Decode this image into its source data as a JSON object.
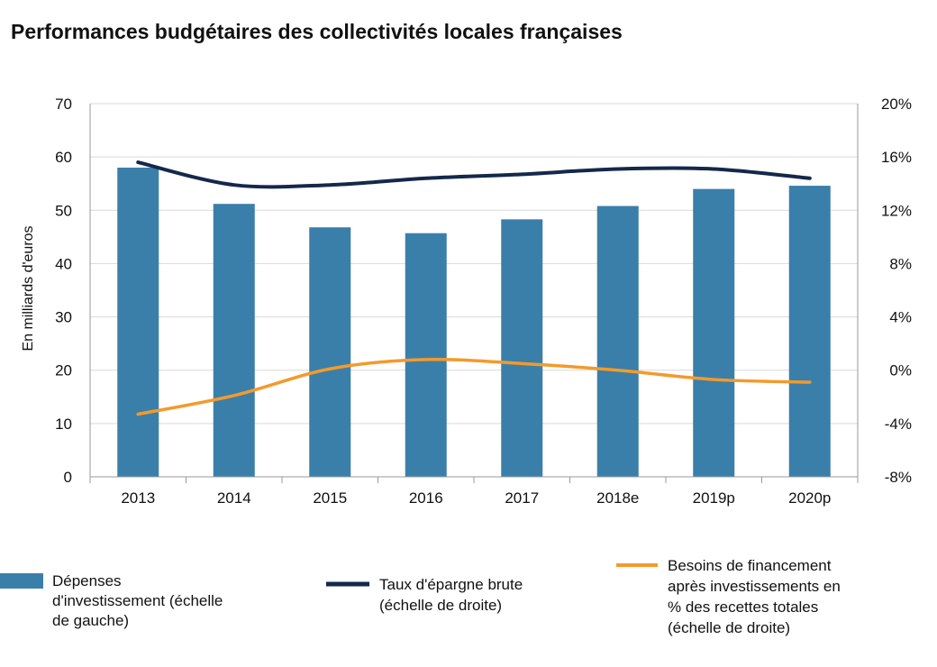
{
  "chart_data": {
    "type": "bar",
    "title": "Performances budgétaires des collectivités locales françaises",
    "ylabel": "En milliards d'euros",
    "ylabel_right": "",
    "categories": [
      "2013",
      "2014",
      "2015",
      "2016",
      "2017",
      "2018e",
      "2019p",
      "2020p"
    ],
    "ylim": [
      0,
      70
    ],
    "yticks": [
      "0",
      "10",
      "20",
      "30",
      "40",
      "50",
      "60",
      "70"
    ],
    "ylim_right": [
      -8,
      20
    ],
    "yticks_right": [
      "-8%",
      "-4%",
      "0%",
      "4%",
      "8%",
      "12%",
      "16%",
      "20%"
    ],
    "legend_position": "bottom",
    "series": [
      {
        "name_lines": [
          "Dépenses",
          "d'investissement (échelle",
          "de gauche)"
        ],
        "type": "bar",
        "axis": "left",
        "color": "#3A7FAA",
        "values": [
          58,
          51.2,
          46.8,
          45.7,
          48.3,
          50.8,
          54,
          54.6
        ]
      },
      {
        "name_lines": [
          "Taux d'épargne brute",
          "(échelle de droite)"
        ],
        "type": "line",
        "axis": "right",
        "color": "#14284B",
        "values": [
          15.6,
          13.9,
          13.9,
          14.4,
          14.7,
          15.1,
          15.1,
          14.4
        ]
      },
      {
        "name_lines": [
          "Besoins de financement",
          "après investissements en",
          "% des recettes totales",
          "(échelle de droite)"
        ],
        "type": "line",
        "axis": "right",
        "color": "#F39A2B",
        "values": [
          -3.3,
          -1.9,
          0.1,
          0.8,
          0.5,
          0.0,
          -0.7,
          -0.9
        ]
      }
    ]
  }
}
